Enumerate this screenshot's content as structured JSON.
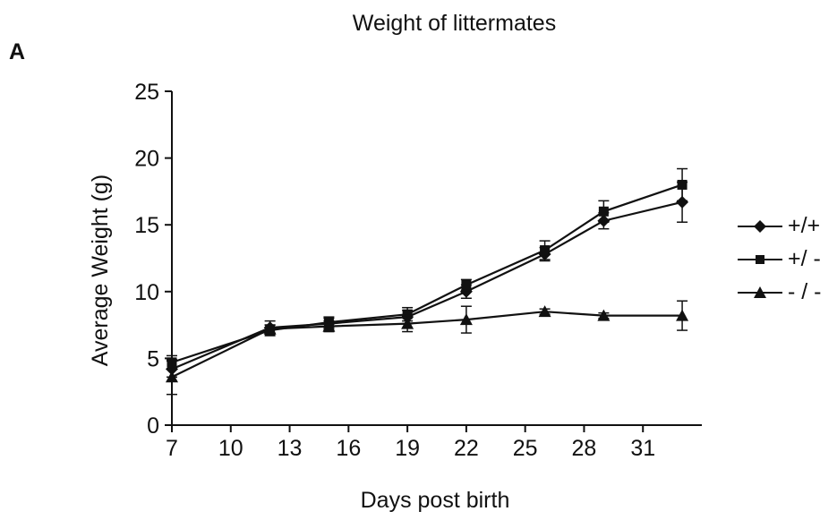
{
  "panel_letter": "A",
  "chart_data": {
    "type": "line",
    "title": "Weight of littermates",
    "xlabel": "Days post birth",
    "ylabel": "Average Weight (g)",
    "xlim": [
      7,
      34
    ],
    "ylim": [
      0,
      25
    ],
    "xticks": [
      7,
      10,
      13,
      16,
      19,
      22,
      25,
      28,
      31
    ],
    "yticks": [
      0,
      5,
      10,
      15,
      20,
      25
    ],
    "grid": false,
    "legend_position": "right",
    "series": [
      {
        "name": "+/+",
        "marker": "diamond",
        "x": [
          7,
          12,
          15,
          19,
          22,
          26,
          29,
          33
        ],
        "y": [
          4.2,
          7.3,
          7.6,
          8.1,
          10.0,
          12.8,
          15.3,
          16.7
        ],
        "err": [
          0.6,
          0.5,
          0.4,
          0.5,
          0.5,
          0.5,
          0.6,
          1.5
        ]
      },
      {
        "name": "+/ -",
        "marker": "square",
        "x": [
          7,
          12,
          15,
          19,
          22,
          26,
          29,
          33
        ],
        "y": [
          4.7,
          7.1,
          7.7,
          8.3,
          10.5,
          13.1,
          16.0,
          18.0
        ],
        "err": [
          0.5,
          0.4,
          0.4,
          0.5,
          0.4,
          0.7,
          0.8,
          1.2
        ]
      },
      {
        "name": "- / -",
        "marker": "triangle",
        "x": [
          7,
          12,
          15,
          19,
          22,
          26,
          29,
          33
        ],
        "y": [
          3.6,
          7.2,
          7.4,
          7.6,
          7.9,
          8.5,
          8.2,
          8.2
        ],
        "err": [
          1.3,
          0.3,
          0.4,
          0.6,
          1.0,
          0.2,
          0.2,
          1.1
        ]
      }
    ]
  }
}
